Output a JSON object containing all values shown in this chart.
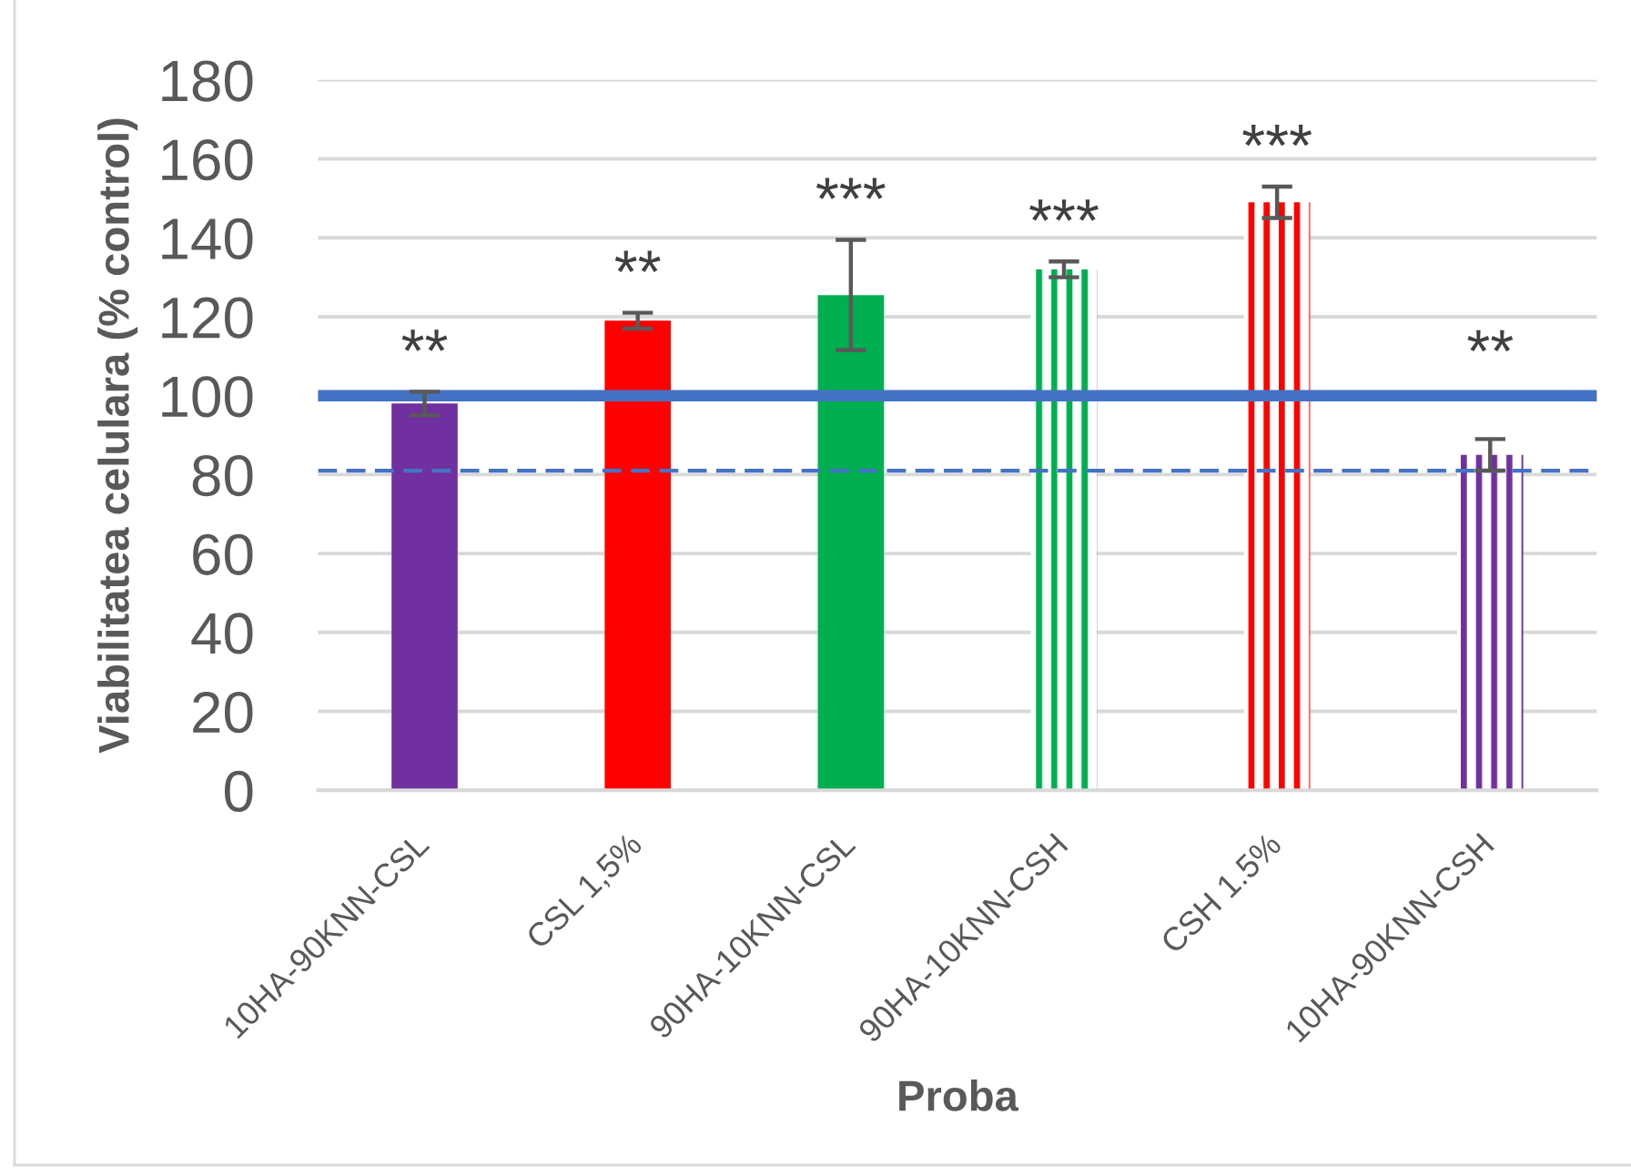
{
  "chart_data": {
    "type": "bar",
    "xlabel": "Proba",
    "ylabel": "Viabilitatea celulara (% control)",
    "categories": [
      "10HA-90KNN-CSL",
      "CSL 1,5%",
      "90HA-10KNN-CSL",
      "90HA-10KNN-CSH",
      "CSH 1.5%",
      "10HA-90KNN-CSH"
    ],
    "series": [
      {
        "colors": [
          "#7030a0",
          "#ff0000",
          "#00b050",
          null,
          null,
          null
        ],
        "values": [
          98,
          119,
          125.5,
          null,
          null,
          null
        ],
        "errors": [
          3,
          2,
          14,
          null,
          null,
          null
        ]
      },
      {
        "colors": [
          null,
          null,
          null,
          "#00b050",
          "#ff0000",
          "#7030a0"
        ],
        "values": [
          null,
          null,
          null,
          132,
          149,
          85
        ],
        "errors": [
          null,
          null,
          null,
          2,
          4,
          4
        ]
      }
    ],
    "ylim": [
      0,
      180
    ],
    "yticks": [
      0,
      20,
      40,
      60,
      80,
      100,
      120,
      140,
      160,
      180
    ],
    "grid": "y",
    "ref_lines": [
      {
        "axis": "y",
        "value": 100,
        "color": "#4472c4",
        "line_style": "solid"
      },
      {
        "axis": "y",
        "value": 81,
        "color": "#4472c4",
        "line_style": "dashed"
      }
    ],
    "annotations": [
      "**",
      "**",
      "***",
      "***",
      "***",
      "**"
    ]
  }
}
